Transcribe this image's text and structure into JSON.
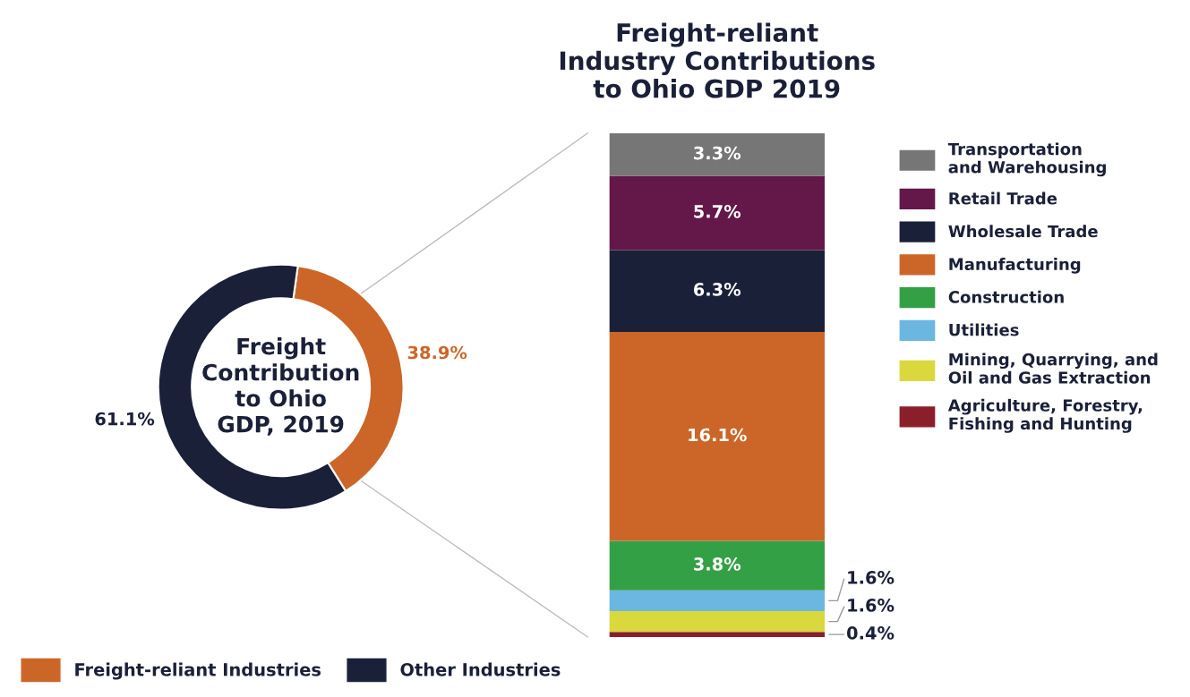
{
  "chart_data": [
    {
      "type": "donut",
      "title": "Freight\nContribution\nto Ohio\nGDP, 2019",
      "categories": [
        "Freight-reliant Industries",
        "Other Industries"
      ],
      "values": [
        38.9,
        61.1
      ],
      "colors": [
        "#cc6628",
        "#1b2039"
      ],
      "value_labels": [
        "38.9%",
        "61.1%"
      ],
      "legend": "bottom"
    },
    {
      "type": "bar",
      "title": "Freight-reliant\nIndustry Contributions\nto Ohio GDP 2019",
      "categories": [
        null
      ],
      "stacked": true,
      "legend": "right",
      "series": [
        {
          "name": "Agriculture, Forestry,\nFishing and Hunting",
          "color": "#8a1f2b",
          "values": [
            0.4
          ],
          "value_labels": [
            "0.4%"
          ]
        },
        {
          "name": "Mining, Quarrying, and\nOil and Gas Extraction",
          "color": "#d9d83d",
          "values": [
            1.6
          ],
          "value_labels": [
            "1.6%"
          ]
        },
        {
          "name": "Utilities",
          "color": "#6cb6e2",
          "values": [
            1.6
          ],
          "value_labels": [
            "1.6%"
          ]
        },
        {
          "name": "Construction",
          "color": "#34a046",
          "values": [
            3.8
          ],
          "value_labels": [
            "3.8%"
          ]
        },
        {
          "name": "Manufacturing",
          "color": "#cc6628",
          "values": [
            16.1
          ],
          "value_labels": [
            "16.1%"
          ]
        },
        {
          "name": "Wholesale Trade",
          "color": "#1b2039",
          "values": [
            6.3
          ],
          "value_labels": [
            "6.3%"
          ]
        },
        {
          "name": "Retail Trade",
          "color": "#631849",
          "values": [
            5.7
          ],
          "value_labels": [
            "5.7%"
          ]
        },
        {
          "name": "Transportation\nand Warehousing",
          "color": "#767676",
          "values": [
            3.3
          ],
          "value_labels": [
            "3.3%"
          ]
        }
      ]
    }
  ]
}
